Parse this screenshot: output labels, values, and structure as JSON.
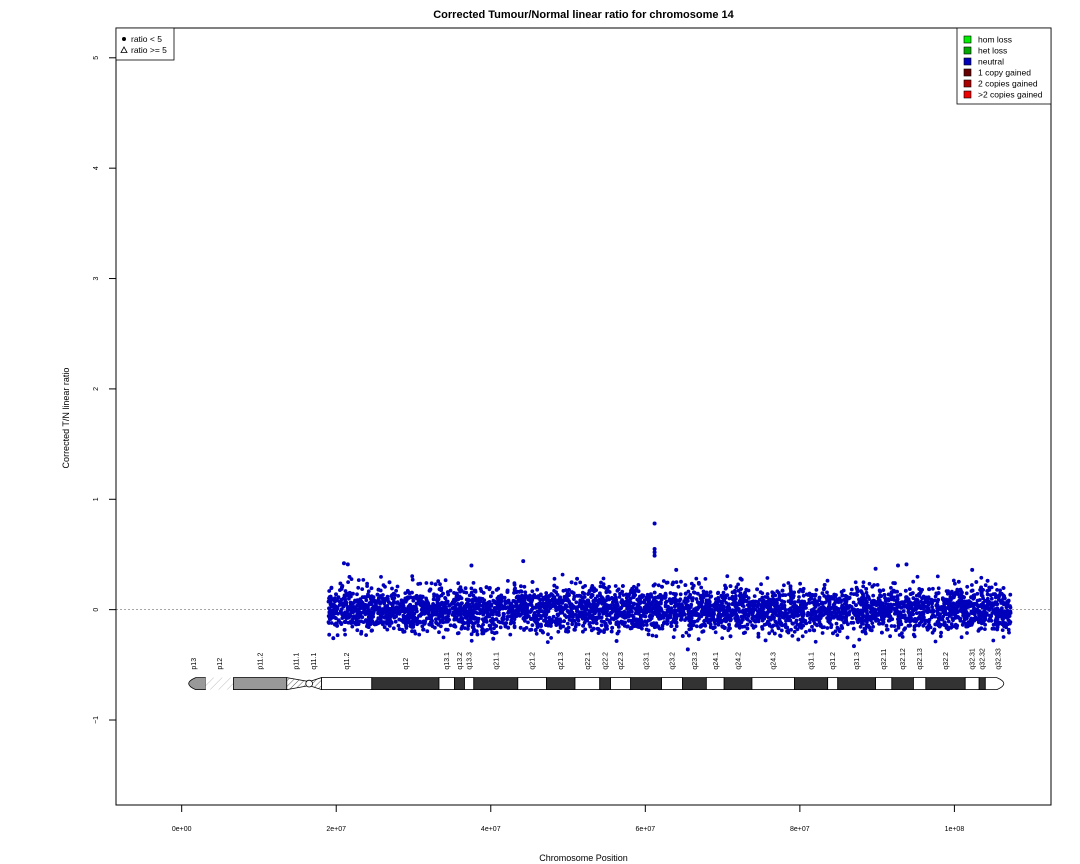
{
  "chart_data": {
    "type": "scatter",
    "title": "Corrected Tumour/Normal linear ratio for chromosome  14",
    "xlabel": "Chromosome Position",
    "ylabel": "Corrected T/N linear ratio",
    "xlim": [
      -8500000,
      112500000
    ],
    "ylim": [
      -1.77,
      5.27
    ],
    "x_ticks": [
      0,
      20000000,
      40000000,
      60000000,
      80000000,
      100000000
    ],
    "x_tick_labels": [
      "0e+00",
      "2e+07",
      "4e+07",
      "6e+07",
      "8e+07",
      "1e+08"
    ],
    "y_ticks": [
      -1,
      0,
      1,
      2,
      3,
      4,
      5
    ],
    "y_tick_labels": [
      "−1",
      "0",
      "1",
      "2",
      "3",
      "4",
      "5"
    ],
    "reference_line": 0,
    "grid": false,
    "point_color": "#0000bb",
    "series": [
      {
        "name": "neutral",
        "x_range": [
          19000000,
          107300000
        ],
        "center": 0,
        "spread_sd": 0.1,
        "outliers": [
          {
            "x": 61200000,
            "y": 0.78
          },
          {
            "x": 61200000,
            "y": 0.55
          },
          {
            "x": 61200000,
            "y": 0.52
          },
          {
            "x": 61200000,
            "y": 0.49
          },
          {
            "x": 44200000,
            "y": 0.44
          },
          {
            "x": 21500000,
            "y": 0.41
          },
          {
            "x": 37500000,
            "y": 0.4
          },
          {
            "x": 93800000,
            "y": 0.41
          },
          {
            "x": 92700000,
            "y": 0.4
          },
          {
            "x": 89800000,
            "y": 0.37
          },
          {
            "x": 102300000,
            "y": 0.36
          },
          {
            "x": 64000000,
            "y": 0.36
          },
          {
            "x": 21000000,
            "y": 0.42
          },
          {
            "x": 65500000,
            "y": -0.36
          },
          {
            "x": 87000000,
            "y": -0.33
          }
        ]
      }
    ],
    "legend_markers": {
      "position": "top-left",
      "items": [
        {
          "label": "ratio < 5",
          "marker": "filled-circle"
        },
        {
          "label": "ratio >= 5",
          "marker": "open-triangle"
        }
      ]
    },
    "legend_status": {
      "position": "top-right",
      "items": [
        {
          "label": "hom loss",
          "color": "#00ee00"
        },
        {
          "label": "het loss",
          "color": "#00aa00"
        },
        {
          "label": "neutral",
          "color": "#0000bb"
        },
        {
          "label": "1 copy gained",
          "color": "#660000"
        },
        {
          "label": "2 copies gained",
          "color": "#aa0000"
        },
        {
          "label": ">2 copies gained",
          "color": "#ee0000"
        }
      ]
    },
    "ideogram": {
      "y_level": -0.67,
      "centromere": 16500000,
      "bands": [
        {
          "name": "p13",
          "start": 0,
          "end": 3100000,
          "stain": "gpos50"
        },
        {
          "name": "p12",
          "start": 3100000,
          "end": 6700000,
          "stain": "stalk"
        },
        {
          "name": "p11.2",
          "start": 6700000,
          "end": 13600000,
          "stain": "gpos50"
        },
        {
          "name": "p11.1",
          "start": 13600000,
          "end": 16000000,
          "stain": "acen"
        },
        {
          "name": "q11.1",
          "start": 16000000,
          "end": 18100000,
          "stain": "acen"
        },
        {
          "name": "q11.2",
          "start": 18100000,
          "end": 24600000,
          "stain": "gneg"
        },
        {
          "name": "q12",
          "start": 24600000,
          "end": 33300000,
          "stain": "gpos100"
        },
        {
          "name": "q13.1",
          "start": 33300000,
          "end": 35300000,
          "stain": "gneg"
        },
        {
          "name": "q13.2",
          "start": 35300000,
          "end": 36600000,
          "stain": "gpos100"
        },
        {
          "name": "q13.3",
          "start": 36600000,
          "end": 37800000,
          "stain": "gneg"
        },
        {
          "name": "q21.1",
          "start": 37800000,
          "end": 43500000,
          "stain": "gpos100"
        },
        {
          "name": "q21.2",
          "start": 43500000,
          "end": 47200000,
          "stain": "gneg"
        },
        {
          "name": "q21.3",
          "start": 47200000,
          "end": 50900000,
          "stain": "gpos100"
        },
        {
          "name": "q22.1",
          "start": 50900000,
          "end": 54100000,
          "stain": "gneg"
        },
        {
          "name": "q22.2",
          "start": 54100000,
          "end": 55500000,
          "stain": "gpos100"
        },
        {
          "name": "q22.3",
          "start": 55500000,
          "end": 58100000,
          "stain": "gneg"
        },
        {
          "name": "q23.1",
          "start": 58100000,
          "end": 62100000,
          "stain": "gpos100"
        },
        {
          "name": "q23.2",
          "start": 62100000,
          "end": 64800000,
          "stain": "gneg"
        },
        {
          "name": "q23.3",
          "start": 64800000,
          "end": 67900000,
          "stain": "gpos100"
        },
        {
          "name": "q24.1",
          "start": 67900000,
          "end": 70200000,
          "stain": "gneg"
        },
        {
          "name": "q24.2",
          "start": 70200000,
          "end": 73800000,
          "stain": "gpos100"
        },
        {
          "name": "q24.3",
          "start": 73800000,
          "end": 79300000,
          "stain": "gneg"
        },
        {
          "name": "q31.1",
          "start": 79300000,
          "end": 83600000,
          "stain": "gpos100"
        },
        {
          "name": "q31.2",
          "start": 83600000,
          "end": 84900000,
          "stain": "gneg"
        },
        {
          "name": "q31.3",
          "start": 84900000,
          "end": 89800000,
          "stain": "gpos100"
        },
        {
          "name": "q32.11",
          "start": 89800000,
          "end": 91900000,
          "stain": "gneg"
        },
        {
          "name": "q32.12",
          "start": 91900000,
          "end": 94700000,
          "stain": "gpos100"
        },
        {
          "name": "q32.13",
          "start": 94700000,
          "end": 96300000,
          "stain": "gneg"
        },
        {
          "name": "q32.2",
          "start": 96300000,
          "end": 101400000,
          "stain": "gpos100"
        },
        {
          "name": "q32.31",
          "start": 101400000,
          "end": 103200000,
          "stain": "gneg"
        },
        {
          "name": "q32.32",
          "start": 103200000,
          "end": 104000000,
          "stain": "gpos100"
        },
        {
          "name": "q32.33",
          "start": 104000000,
          "end": 107300000,
          "stain": "gneg"
        }
      ]
    }
  }
}
